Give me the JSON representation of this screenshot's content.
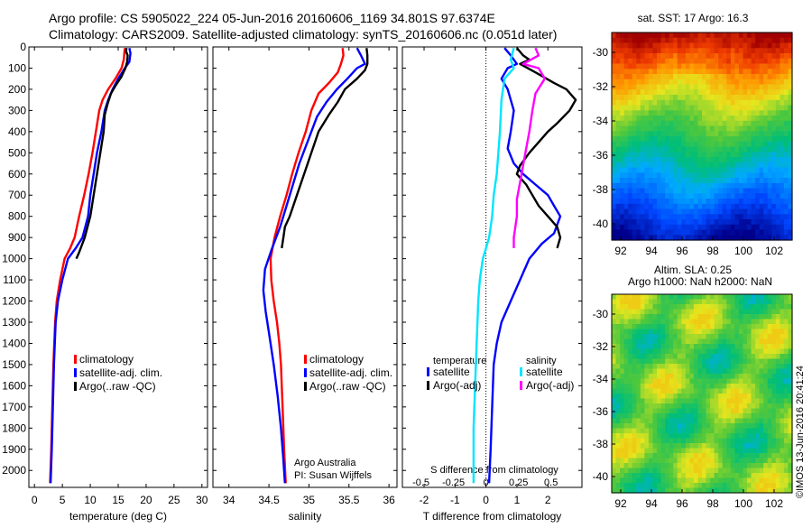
{
  "header": {
    "line1": "Argo profile: CS 5905022_224 05-Jun-2016 20160606_1169 34.801S 97.6374E",
    "line2": "Climatology: CARS2009. Satellite-adjusted climatology: synTS_20160606.nc (0.051d later)"
  },
  "colors": {
    "climatology": "#ff0000",
    "satellite": "#0000ff",
    "argo": "#000000",
    "sal_satellite": "#00e5ff",
    "sal_argo": "#ff00ff"
  },
  "chart_data": [
    {
      "type": "line",
      "id": "temperature",
      "xlabel": "temperature (deg C)",
      "xlim": [
        -1,
        31
      ],
      "xticks": [
        "0",
        "5",
        "10",
        "15",
        "20",
        "25",
        "30"
      ],
      "ylim": [
        2080,
        0
      ],
      "yticks": [
        "0",
        "100",
        "200",
        "300",
        "400",
        "500",
        "600",
        "700",
        "800",
        "900",
        "1000",
        "1100",
        "1200",
        "1300",
        "1400",
        "1500",
        "1600",
        "1700",
        "1800",
        "1900",
        "2000"
      ],
      "legend": [
        "climatology",
        "satellite-adj. clim.",
        "Argo(..raw -QC)"
      ],
      "series": [
        {
          "name": "climatology",
          "color": "#ff0000",
          "points": [
            [
              16.2,
              5
            ],
            [
              16.1,
              30
            ],
            [
              16,
              60
            ],
            [
              15.6,
              100
            ],
            [
              14.5,
              150
            ],
            [
              13.2,
              200
            ],
            [
              12.2,
              250
            ],
            [
              11.6,
              300
            ],
            [
              11,
              400
            ],
            [
              10.4,
              500
            ],
            [
              9.7,
              600
            ],
            [
              8.9,
              700
            ],
            [
              8,
              800
            ],
            [
              7.2,
              900
            ],
            [
              6.4,
              950
            ],
            [
              5.4,
              1000
            ],
            [
              4.6,
              1100
            ],
            [
              4,
              1200
            ],
            [
              3.7,
              1300
            ],
            [
              3.4,
              1500
            ],
            [
              3.2,
              1700
            ],
            [
              3,
              1900
            ],
            [
              2.8,
              2060
            ]
          ]
        },
        {
          "name": "satellite-adj. clim.",
          "color": "#0000ff",
          "points": [
            [
              17,
              5
            ],
            [
              17.2,
              30
            ],
            [
              17,
              70
            ],
            [
              16.2,
              100
            ],
            [
              15,
              150
            ],
            [
              14,
              200
            ],
            [
              13.2,
              250
            ],
            [
              12.6,
              300
            ],
            [
              12,
              400
            ],
            [
              11.2,
              500
            ],
            [
              10.6,
              600
            ],
            [
              10,
              700
            ],
            [
              9.6,
              800
            ],
            [
              8.6,
              900
            ],
            [
              7.4,
              950
            ],
            [
              6,
              1000
            ],
            [
              5,
              1100
            ],
            [
              4.2,
              1200
            ],
            [
              3.8,
              1300
            ],
            [
              3.5,
              1500
            ],
            [
              3.3,
              1700
            ],
            [
              3.1,
              1900
            ],
            [
              2.9,
              2060
            ]
          ]
        },
        {
          "name": "Argo(..raw -QC)",
          "color": "#000000",
          "points": [
            [
              16.5,
              5
            ],
            [
              16.4,
              20
            ],
            [
              16.7,
              40
            ],
            [
              16.6,
              70
            ],
            [
              16.3,
              100
            ],
            [
              15.6,
              140
            ],
            [
              14.6,
              180
            ],
            [
              13.7,
              220
            ],
            [
              13.1,
              270
            ],
            [
              12.6,
              320
            ],
            [
              12.4,
              400
            ],
            [
              11.8,
              500
            ],
            [
              11.2,
              600
            ],
            [
              10.6,
              700
            ],
            [
              10,
              800
            ],
            [
              9,
              900
            ],
            [
              8,
              970
            ],
            [
              7.5,
              1000
            ]
          ]
        }
      ]
    },
    {
      "type": "line",
      "id": "salinity",
      "xlabel": "salinity",
      "xlim": [
        33.8,
        36.1
      ],
      "xticks": [
        "34",
        "34.5",
        "35",
        "35.5",
        "36"
      ],
      "ylim": [
        2080,
        0
      ],
      "legend": [
        "climatology",
        "satellite-adj. clim.",
        "Argo(..raw -QC)"
      ],
      "notes": [
        "Argo Australia",
        "PI: Susan Wijffels"
      ],
      "series": [
        {
          "name": "climatology",
          "color": "#ff0000",
          "points": [
            [
              35.42,
              5
            ],
            [
              35.43,
              40
            ],
            [
              35.4,
              80
            ],
            [
              35.36,
              120
            ],
            [
              35.25,
              170
            ],
            [
              35.12,
              220
            ],
            [
              35.03,
              300
            ],
            [
              34.96,
              400
            ],
            [
              34.87,
              500
            ],
            [
              34.79,
              600
            ],
            [
              34.72,
              700
            ],
            [
              34.64,
              800
            ],
            [
              34.57,
              900
            ],
            [
              34.52,
              1000
            ],
            [
              34.53,
              1100
            ],
            [
              34.56,
              1200
            ],
            [
              34.6,
              1300
            ],
            [
              34.63,
              1400
            ],
            [
              34.65,
              1500
            ],
            [
              34.67,
              1700
            ],
            [
              34.69,
              1900
            ],
            [
              34.71,
              2060
            ]
          ]
        },
        {
          "name": "satellite-adj. clim.",
          "color": "#0000ff",
          "points": [
            [
              35.6,
              5
            ],
            [
              35.65,
              40
            ],
            [
              35.7,
              80
            ],
            [
              35.6,
              100
            ],
            [
              35.48,
              150
            ],
            [
              35.35,
              200
            ],
            [
              35.22,
              260
            ],
            [
              35.1,
              330
            ],
            [
              34.98,
              450
            ],
            [
              34.88,
              550
            ],
            [
              34.8,
              650
            ],
            [
              34.72,
              750
            ],
            [
              34.64,
              850
            ],
            [
              34.54,
              950
            ],
            [
              34.45,
              1050
            ],
            [
              34.43,
              1150
            ],
            [
              34.46,
              1250
            ],
            [
              34.5,
              1350
            ],
            [
              34.56,
              1500
            ],
            [
              34.61,
              1650
            ],
            [
              34.65,
              1800
            ],
            [
              34.68,
              1950
            ],
            [
              34.7,
              2060
            ]
          ]
        },
        {
          "name": "Argo(..raw -QC)",
          "color": "#000000",
          "points": [
            [
              35.72,
              5
            ],
            [
              35.73,
              40
            ],
            [
              35.73,
              80
            ],
            [
              35.7,
              110
            ],
            [
              35.6,
              150
            ],
            [
              35.45,
              200
            ],
            [
              35.36,
              260
            ],
            [
              35.25,
              320
            ],
            [
              35.12,
              400
            ],
            [
              35.03,
              500
            ],
            [
              34.94,
              600
            ],
            [
              34.85,
              700
            ],
            [
              34.76,
              800
            ],
            [
              34.7,
              850
            ],
            [
              34.68,
              900
            ],
            [
              34.66,
              950
            ]
          ]
        }
      ]
    },
    {
      "type": "line",
      "id": "differences",
      "xlabel": "T difference from climatology",
      "xlabel_top": "S difference from climatology",
      "xlim": [
        -2.7,
        3.1
      ],
      "xticks": [
        "-2",
        "-1",
        "0",
        "1",
        "2"
      ],
      "sticks": [
        "-0.5",
        "-0.25",
        "0",
        "0.25",
        "0.5"
      ],
      "ylim": [
        2080,
        0
      ],
      "legend": {
        "temperature": "temperature",
        "salinity": "salinity",
        "items": [
          "satellite",
          "Argo(-adj)",
          "satellite",
          "Argo(-adj)"
        ]
      },
      "series": [
        {
          "name": "satellite",
          "color": "#0000ff",
          "points": [
            [
              0.6,
              5
            ],
            [
              0.8,
              40
            ],
            [
              1.0,
              80
            ],
            [
              0.7,
              100
            ],
            [
              0.5,
              150
            ],
            [
              0.7,
              200
            ],
            [
              0.8,
              250
            ],
            [
              0.9,
              300
            ],
            [
              0.8,
              400
            ],
            [
              0.7,
              480
            ],
            [
              0.9,
              550
            ],
            [
              1.2,
              600
            ],
            [
              1.6,
              650
            ],
            [
              2.0,
              700
            ],
            [
              2.2,
              750
            ],
            [
              2.4,
              800
            ],
            [
              2.2,
              880
            ],
            [
              1.8,
              930
            ],
            [
              1.4,
              1000
            ],
            [
              1.1,
              1100
            ],
            [
              0.8,
              1200
            ],
            [
              0.5,
              1300
            ],
            [
              0.35,
              1400
            ],
            [
              0.25,
              1500
            ],
            [
              0.2,
              1700
            ],
            [
              0.15,
              1900
            ],
            [
              0.1,
              2060
            ]
          ]
        },
        {
          "name": "Argo(-adj)",
          "color": "#000000",
          "points": [
            [
              1.0,
              5
            ],
            [
              1.2,
              40
            ],
            [
              1.4,
              60
            ],
            [
              1.1,
              80
            ],
            [
              1.6,
              120
            ],
            [
              2.2,
              170
            ],
            [
              2.6,
              200
            ],
            [
              2.9,
              250
            ],
            [
              2.7,
              300
            ],
            [
              2.3,
              360
            ],
            [
              2.0,
              400
            ],
            [
              1.7,
              450
            ],
            [
              1.4,
              500
            ],
            [
              1.1,
              560
            ],
            [
              1.0,
              600
            ],
            [
              1.3,
              650
            ],
            [
              1.5,
              700
            ],
            [
              1.7,
              750
            ],
            [
              2.0,
              800
            ],
            [
              2.3,
              850
            ],
            [
              2.4,
              900
            ],
            [
              2.3,
              950
            ]
          ]
        },
        {
          "name": "satellite",
          "color": "#00e5ff",
          "points": [
            [
              0.9,
              5
            ],
            [
              0.8,
              60
            ],
            [
              0.9,
              100
            ],
            [
              0.6,
              150
            ],
            [
              0.5,
              250
            ],
            [
              0.45,
              400
            ],
            [
              0.35,
              600
            ],
            [
              0.25,
              700
            ],
            [
              0.2,
              800
            ],
            [
              0.1,
              900
            ],
            [
              -0.1,
              1000
            ],
            [
              -0.2,
              1100
            ],
            [
              -0.25,
              1200
            ],
            [
              -0.3,
              1400
            ],
            [
              -0.35,
              1600
            ],
            [
              -0.4,
              1800
            ],
            [
              -0.4,
              2060
            ]
          ]
        },
        {
          "name": "Argo(-adj)",
          "color": "#ff00ff",
          "points": [
            [
              1.6,
              5
            ],
            [
              1.7,
              40
            ],
            [
              1.2,
              80
            ],
            [
              1.7,
              100
            ],
            [
              1.9,
              150
            ],
            [
              1.6,
              220
            ],
            [
              1.5,
              300
            ],
            [
              1.4,
              400
            ],
            [
              1.3,
              480
            ],
            [
              1.2,
              560
            ],
            [
              1.1,
              640
            ],
            [
              1.0,
              720
            ],
            [
              1.0,
              800
            ],
            [
              0.9,
              900
            ],
            [
              0.9,
              950
            ]
          ]
        }
      ]
    }
  ],
  "maps": [
    {
      "title": "sat. SST: 17 Argo: 16.3",
      "xticks": [
        "92",
        "94",
        "96",
        "98",
        "100",
        "102"
      ],
      "yticks": [
        "-30",
        "-32",
        "-34",
        "-36",
        "-38",
        "-40"
      ]
    },
    {
      "title": "Altim. SLA: 0.25",
      "title2": "Argo h1000: NaN h2000: NaN",
      "xticks": [
        "92",
        "94",
        "96",
        "98",
        "100",
        "102"
      ],
      "yticks": [
        "-30",
        "-32",
        "-34",
        "-36",
        "-38",
        "-40"
      ]
    }
  ],
  "footer": {
    "credit": "©IMOS 13-Jun-2016 20:41:24"
  }
}
